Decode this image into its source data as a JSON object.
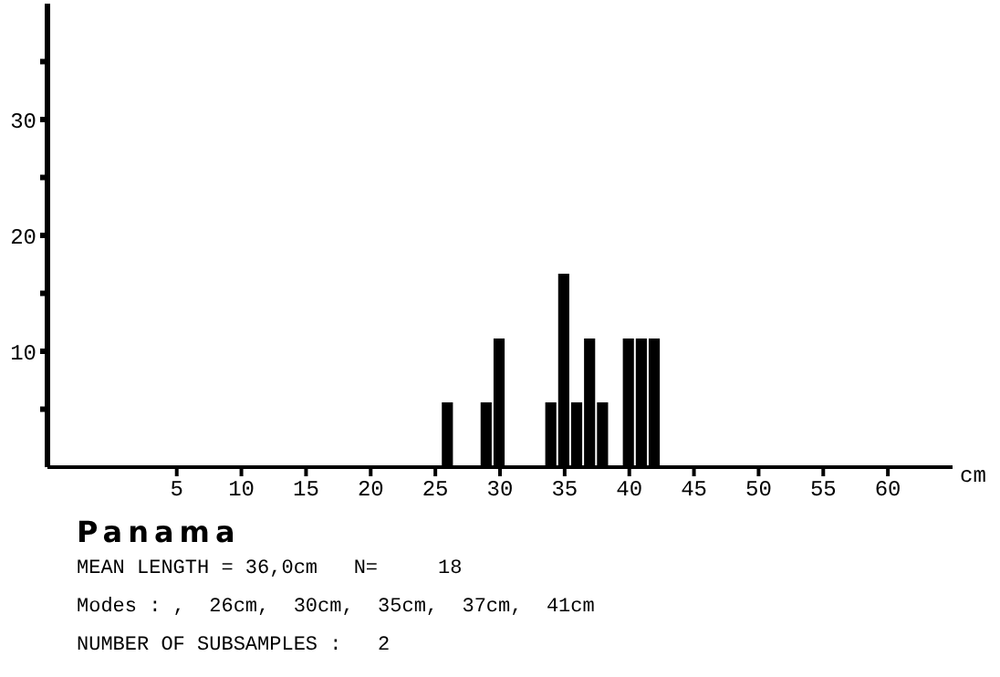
{
  "chart_data": {
    "type": "histogram",
    "title": "Panama",
    "xlabel": "cm",
    "bins": [
      25.5,
      26.5,
      27.5,
      28.5,
      29.5,
      30.5,
      31.5,
      32.5,
      33.5,
      34.5,
      35.5,
      36.5,
      37.5,
      38.5,
      39.5,
      40.5,
      41.5,
      42.5
    ],
    "values": [
      5.6,
      0,
      0,
      5.6,
      11.1,
      0,
      0,
      0,
      5.6,
      16.7,
      5.6,
      11.1,
      5.6,
      0,
      11.1,
      11.1,
      11.1
    ],
    "color": "#000000",
    "xlim": [
      -5,
      65
    ],
    "xticks": [
      5,
      10,
      15,
      20,
      25,
      30,
      35,
      40,
      45,
      50,
      55,
      60
    ],
    "ylim": [
      0,
      40
    ],
    "yticks": [
      {
        "value": 5,
        "label": null
      },
      10,
      {
        "value": 15,
        "label": null
      },
      20,
      {
        "value": 25,
        "label": null
      },
      30,
      {
        "value": 35,
        "label": null
      }
    ],
    "annotations": [
      "MEAN LENGTH = 36,0cm   N=     18",
      "Modes : ,  26cm,  30cm,  35cm,  37cm,  41cm",
      "NUMBER OF SUBSAMPLES :   2"
    ]
  }
}
